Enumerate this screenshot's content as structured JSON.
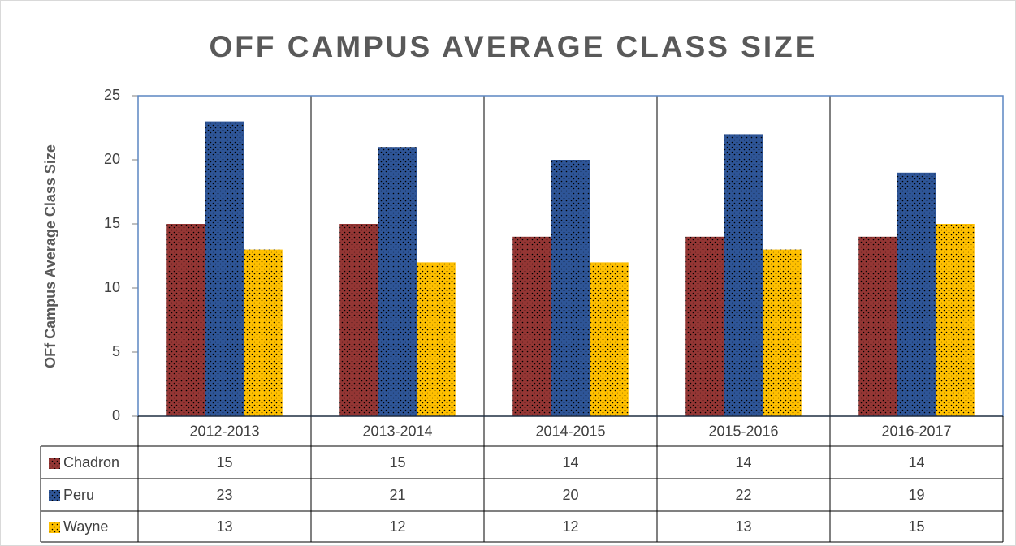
{
  "chart_data": {
    "type": "bar",
    "title": "OFF CAMPUS AVERAGE CLASS SIZE",
    "y_label": "OFf Campus Average Class Size",
    "categories": [
      "2012-2013",
      "2013-2014",
      "2014-2015",
      "2015-2016",
      "2016-2017"
    ],
    "series": [
      {
        "name": "Chadron",
        "color": "#943634",
        "values": [
          15,
          15,
          14,
          14,
          14
        ]
      },
      {
        "name": "Peru",
        "color": "#2e5597",
        "values": [
          23,
          21,
          20,
          22,
          19
        ]
      },
      {
        "name": "Wayne",
        "color": "#ffc000",
        "values": [
          13,
          12,
          12,
          13,
          15
        ]
      }
    ],
    "ylim": [
      0,
      25
    ],
    "yticks": [
      0,
      5,
      10,
      15,
      20,
      25
    ],
    "grid": false,
    "data_table": true
  }
}
